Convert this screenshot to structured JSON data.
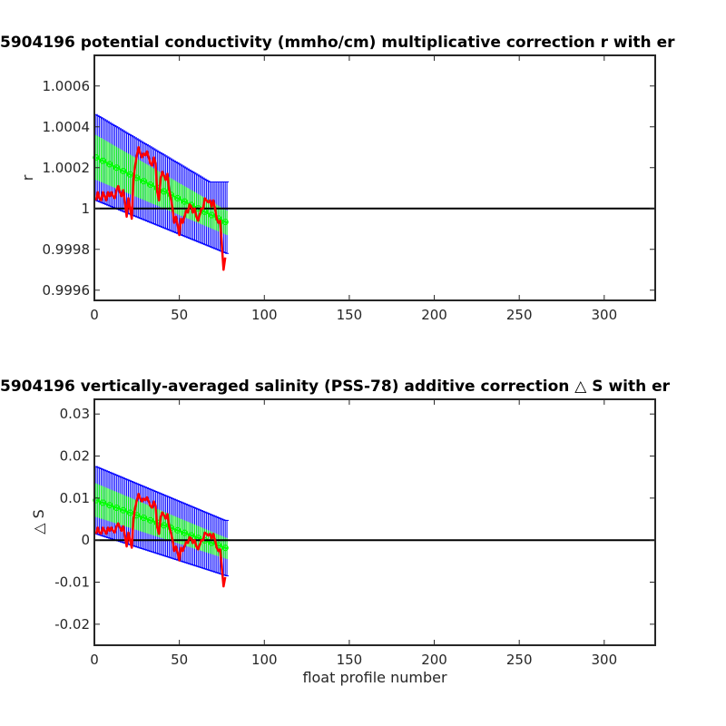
{
  "chart_data": [
    {
      "type": "line",
      "title": "5904196 potential conductivity (mmho/cm) multiplicative correction r with er",
      "xlabel": "",
      "ylabel": "r",
      "xlim": [
        0,
        330
      ],
      "ylim": [
        0.99955,
        1.00075
      ],
      "xticks": [
        0,
        50,
        100,
        150,
        200,
        250,
        300
      ],
      "xtick_labels": [
        "0",
        "50",
        "100",
        "150",
        "200",
        "250",
        "300"
      ],
      "yticks": [
        0.9996,
        0.9998,
        1.0,
        1.0002,
        1.0004,
        1.0006
      ],
      "ytick_labels": [
        "0.9996",
        "0.9998",
        "1",
        "1.0002",
        "1.0004",
        "1.0006"
      ],
      "reference_line": 1.0,
      "grid": false,
      "series": [
        {
          "kind": "fit-with-errorbars",
          "color": "#00ff00",
          "errorbar_color": "#0000ff",
          "x_start": 1,
          "x_end": 78,
          "fit_start": 1.00025,
          "fit_end": 0.99993,
          "inner_error_start": 0.00011,
          "inner_error_end": 6e-05,
          "outer_error_start": 0.00021,
          "outer_error_end": 0.00015,
          "blue_upper_flat": 1.00013
        },
        {
          "kind": "line",
          "color": "#ff0000",
          "x": [
            1,
            2,
            3,
            4,
            5,
            6,
            7,
            8,
            9,
            10,
            11,
            12,
            13,
            14,
            15,
            16,
            17,
            18,
            19,
            20,
            21,
            22,
            23,
            24,
            25,
            26,
            27,
            28,
            29,
            30,
            31,
            32,
            33,
            34,
            35,
            36,
            37,
            38,
            39,
            40,
            41,
            42,
            43,
            44,
            45,
            46,
            47,
            48,
            49,
            50,
            51,
            52,
            53,
            54,
            55,
            56,
            57,
            58,
            59,
            60,
            61,
            62,
            63,
            64,
            65,
            66,
            67,
            68,
            69,
            70,
            71,
            72,
            73,
            74,
            75,
            76,
            77
          ],
          "y": [
            1.00004,
            1.00008,
            1.00005,
            1.00004,
            1.00008,
            1.00006,
            1.00004,
            1.00008,
            1.00006,
            1.00008,
            1.00006,
            1.00005,
            1.00009,
            1.00011,
            1.00008,
            1.00006,
            1.00009,
            1.00003,
            0.99996,
            1.00005,
            1.0,
            0.99995,
            1.00014,
            1.00021,
            1.00026,
            1.0003,
            1.00027,
            1.00025,
            1.00027,
            1.00026,
            1.00028,
            1.00025,
            1.00022,
            1.00021,
            1.00025,
            1.00022,
            1.00008,
            1.00004,
            1.00015,
            1.00018,
            1.00016,
            1.00014,
            1.00017,
            1.00009,
            1.00005,
            1.0,
            0.99993,
            0.99996,
            0.99992,
            0.99987,
            0.99995,
            0.99993,
            0.99996,
            0.99999,
            0.99998,
            1.00002,
            1.00001,
            0.99998,
            1.0,
            0.99996,
            0.99994,
            0.99997,
            1.0,
            1.0,
            1.00005,
            1.00004,
            1.00003,
            1.00004,
            1.00001,
            1.00004,
            1.0,
            0.99995,
            0.99993,
            0.99994,
            0.99982,
            0.9997,
            0.99976
          ]
        }
      ]
    },
    {
      "type": "line",
      "title": "5904196 vertically-averaged salinity (PSS-78) additive correction △ S with er",
      "xlabel": "float profile number",
      "ylabel": "△ S",
      "xlim": [
        0,
        330
      ],
      "ylim": [
        -0.025,
        0.0335
      ],
      "xticks": [
        0,
        50,
        100,
        150,
        200,
        250,
        300
      ],
      "xtick_labels": [
        "0",
        "50",
        "100",
        "150",
        "200",
        "250",
        "300"
      ],
      "yticks": [
        -0.02,
        -0.01,
        0,
        0.01,
        0.02,
        0.03
      ],
      "ytick_labels": [
        "-0.02",
        "-0.01",
        "0",
        "0.01",
        "0.02",
        "0.03"
      ],
      "reference_line": 0,
      "grid": false,
      "series": [
        {
          "kind": "fit-with-errorbars",
          "color": "#00ff00",
          "errorbar_color": "#0000ff",
          "x_start": 1,
          "x_end": 78,
          "fit_start": 0.0095,
          "fit_end": -0.002,
          "inner_error_start": 0.004,
          "inner_error_end": 0.0025,
          "outer_error_start": 0.008,
          "outer_error_end": 0.0065,
          "blue_upper_flat": 0.0047
        },
        {
          "kind": "line",
          "color": "#ff0000",
          "x": [
            1,
            2,
            3,
            4,
            5,
            6,
            7,
            8,
            9,
            10,
            11,
            12,
            13,
            14,
            15,
            16,
            17,
            18,
            19,
            20,
            21,
            22,
            23,
            24,
            25,
            26,
            27,
            28,
            29,
            30,
            31,
            32,
            33,
            34,
            35,
            36,
            37,
            38,
            39,
            40,
            41,
            42,
            43,
            44,
            45,
            46,
            47,
            48,
            49,
            50,
            51,
            52,
            53,
            54,
            55,
            56,
            57,
            58,
            59,
            60,
            61,
            62,
            63,
            64,
            65,
            66,
            67,
            68,
            69,
            70,
            71,
            72,
            73,
            74,
            75,
            76,
            77
          ],
          "y": [
            0.0015,
            0.003,
            0.0018,
            0.0015,
            0.003,
            0.0022,
            0.0015,
            0.003,
            0.0022,
            0.003,
            0.0022,
            0.0018,
            0.0033,
            0.004,
            0.003,
            0.0022,
            0.0033,
            0.001,
            -0.0015,
            0.0018,
            0.0,
            -0.0018,
            0.005,
            0.0077,
            0.0095,
            0.011,
            0.0099,
            0.0092,
            0.0099,
            0.0095,
            0.0102,
            0.0092,
            0.0081,
            0.0077,
            0.0092,
            0.0081,
            0.003,
            0.0015,
            0.0055,
            0.0066,
            0.0059,
            0.0051,
            0.0062,
            0.0033,
            0.0018,
            0.0,
            -0.0026,
            -0.0015,
            -0.003,
            -0.0048,
            -0.0018,
            -0.0026,
            -0.0015,
            -0.0004,
            -0.0007,
            0.0007,
            0.0004,
            -0.0007,
            0.0,
            -0.0015,
            -0.0022,
            -0.0011,
            0.0,
            0.0,
            0.0018,
            0.0015,
            0.0011,
            0.0015,
            0.0004,
            0.0015,
            0.0,
            -0.0018,
            -0.0026,
            -0.0022,
            -0.0066,
            -0.011,
            -0.0088
          ]
        }
      ]
    }
  ]
}
